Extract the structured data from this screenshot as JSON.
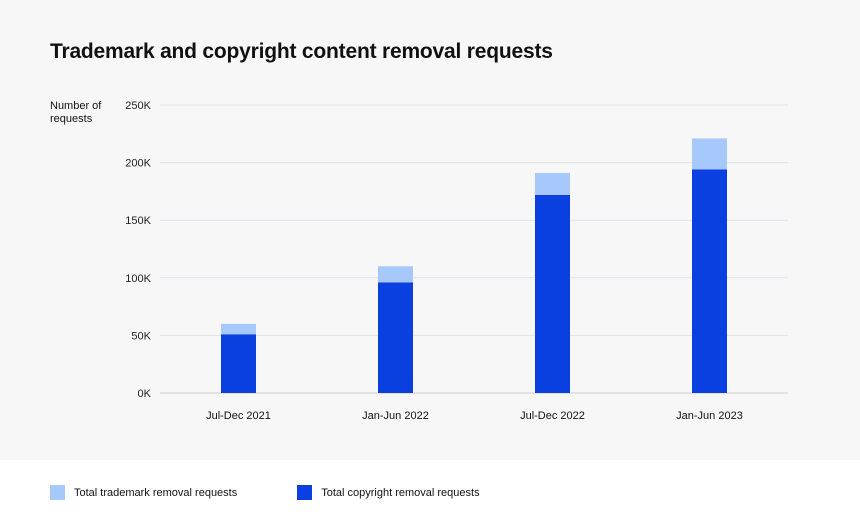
{
  "chart_data": {
    "type": "bar",
    "stacked": true,
    "title": "Trademark and copyright content removal requests",
    "xlabel": "",
    "ylabel": "Number of\nrequests",
    "categories": [
      "Jul-Dec 2021",
      "Jan-Jun 2022",
      "Jul-Dec 2022",
      "Jan-Jun 2023"
    ],
    "ylim": [
      0,
      250000
    ],
    "yticks": [
      0,
      50000,
      100000,
      150000,
      200000,
      250000
    ],
    "ytick_labels": [
      "0K",
      "50K",
      "100K",
      "150K",
      "200K",
      "250K"
    ],
    "grid": true,
    "legend_position": "bottom",
    "series": [
      {
        "name": "Total copyright removal requests",
        "values": [
          51000,
          96000,
          172000,
          194000
        ],
        "color": "#0a3fe0"
      },
      {
        "name": "Total trademark removal requests",
        "values": [
          9000,
          14000,
          19000,
          27000
        ],
        "color": "#a6c8fb"
      }
    ],
    "legend": [
      {
        "label": "Total trademark removal requests",
        "color": "#a6c8fb"
      },
      {
        "label": "Total copyright removal requests",
        "color": "#0a3fe0"
      }
    ]
  }
}
